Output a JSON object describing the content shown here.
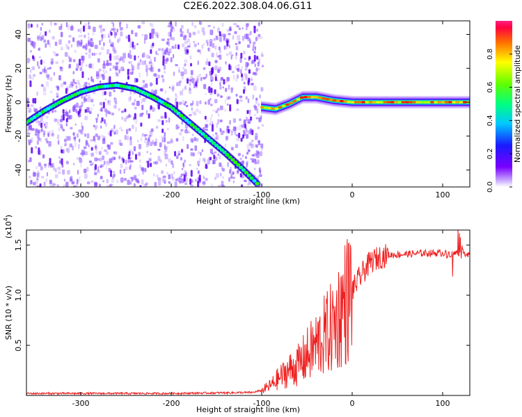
{
  "title": "C2E6.2022.308.04.06.G11",
  "colors": {
    "snr_line": "#ee2222",
    "spectrogram_noise": "#8a4fff",
    "axis": "#000000"
  },
  "chart_data": [
    {
      "type": "heatmap",
      "name": "spectrogram",
      "xlabel": "Height of straight line (km)",
      "ylabel": "Frequency (Hz)",
      "xlim": [
        -360,
        130
      ],
      "ylim": [
        -50,
        48
      ],
      "xticks": [
        -300,
        -200,
        -100,
        0,
        100
      ],
      "yticks": [
        -40,
        -20,
        0,
        20,
        40
      ],
      "grid": false,
      "colorbar": {
        "label": "Normalized spectral amplitude",
        "range": [
          0,
          1
        ],
        "ticks": [
          0.0,
          0.2,
          0.4,
          0.6,
          0.8
        ],
        "tick_labels": [
          "0.0",
          "0.2",
          "0.4",
          "0.6",
          "0.8"
        ],
        "colormap": "rainbow"
      },
      "traces": [
        {
          "description": "arc",
          "x": [
            -360,
            -340,
            -320,
            -300,
            -280,
            -260,
            -240,
            -220,
            -200,
            -180,
            -160,
            -140,
            -120,
            -105
          ],
          "y": [
            -12,
            -5,
            1,
            6,
            9,
            10,
            8,
            3,
            -3,
            -12,
            -21,
            -30,
            -40,
            -48
          ],
          "amplitude": 0.45
        },
        {
          "description": "line",
          "x": [
            -100,
            -85,
            -70,
            -55,
            -40,
            -20,
            0,
            40,
            80,
            130
          ],
          "y": [
            -3,
            -4,
            -1,
            3,
            3,
            1,
            0,
            0,
            0,
            0
          ],
          "amplitude": 0.85
        }
      ]
    },
    {
      "type": "line",
      "name": "snr",
      "xlabel": "Height of straight line (km)",
      "ylabel": "SNR (10 * v/v)",
      "y_multiplier_label": "(x10",
      "y_multiplier_exp": "4",
      "y_multiplier_close": ")",
      "xlim": [
        -360,
        130
      ],
      "ylim": [
        0,
        1.65
      ],
      "xticks": [
        -300,
        -200,
        -100,
        0,
        100
      ],
      "yticks": [
        0.5,
        1.0,
        1.5
      ],
      "ytick_labels": [
        "0.5",
        "1.0",
        "1.5"
      ],
      "grid": false,
      "x": [
        -360,
        -300,
        -200,
        -110,
        -100,
        -90,
        -80,
        -70,
        -60,
        -50,
        -40,
        -30,
        -20,
        -10,
        0,
        10,
        20,
        30,
        40,
        60,
        80,
        100,
        110,
        120,
        130
      ],
      "y": [
        0.02,
        0.02,
        0.02,
        0.03,
        0.05,
        0.1,
        0.18,
        0.25,
        0.3,
        0.4,
        0.5,
        0.6,
        0.7,
        0.9,
        1.05,
        1.2,
        1.33,
        1.38,
        1.4,
        1.41,
        1.42,
        1.42,
        1.41,
        1.43,
        1.41
      ]
    }
  ]
}
